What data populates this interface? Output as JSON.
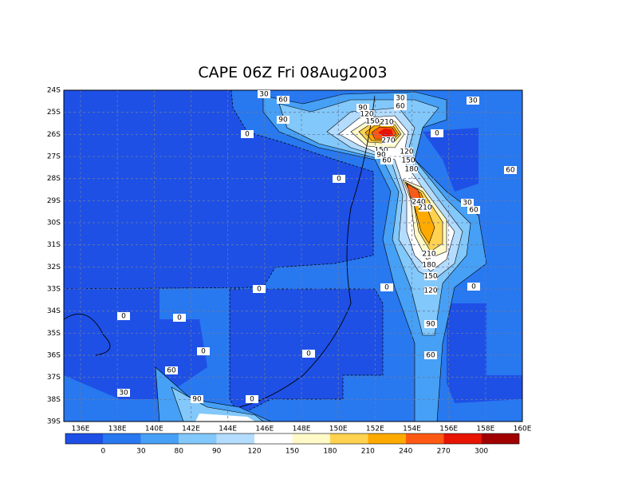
{
  "title": "CAPE 06Z Fri 08Aug2003",
  "lat_labels": [
    "24S",
    "25S",
    "26S",
    "27S",
    "28S",
    "29S",
    "30S",
    "31S",
    "32S",
    "33S",
    "34S",
    "35S",
    "36S",
    "37S",
    "38S",
    "39S"
  ],
  "lon_labels": [
    "136E",
    "138E",
    "140E",
    "142E",
    "144E",
    "146E",
    "148E",
    "150E",
    "152E",
    "154E",
    "156E",
    "158E",
    "160E"
  ],
  "colorbar": {
    "labels": [
      "0",
      "30",
      "80",
      "90",
      "120",
      "150",
      "180",
      "210",
      "240",
      "270",
      "300"
    ],
    "colors": [
      "#1e50e6",
      "#2878f0",
      "#46a0f5",
      "#82c8fa",
      "#b4dcff",
      "#ffffff",
      "#fffac8",
      "#ffd250",
      "#ffaa00",
      "#ff5a14",
      "#e61400",
      "#a00000"
    ]
  },
  "contour_labels": [
    "30",
    "60",
    "90",
    "90",
    "120",
    "150",
    "210",
    "270",
    "150",
    "90",
    "60",
    "30",
    "60",
    "30",
    "0",
    "0",
    "120",
    "150",
    "180",
    "0",
    "60",
    "240",
    "210",
    "30",
    "60",
    "210",
    "180",
    "150",
    "120",
    "0",
    "0",
    "90",
    "60",
    "0",
    "0",
    "0",
    "0",
    "60",
    "30",
    "90",
    "0",
    "0"
  ]
}
